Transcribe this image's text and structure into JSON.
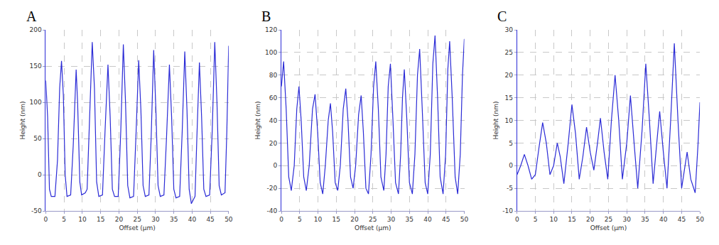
{
  "chart_data": [
    {
      "type": "line",
      "title": "A",
      "xlabel": "Offset (µm)",
      "ylabel": "Height (nm)",
      "color": "#2b2bd6",
      "grid": true,
      "xlim": [
        0,
        50
      ],
      "xticks": [
        0,
        5,
        10,
        15,
        20,
        25,
        30,
        35,
        40,
        45,
        50
      ],
      "ylim": [
        -50,
        200
      ],
      "yticks": [
        -50,
        0,
        50,
        100,
        150,
        200
      ],
      "x": [
        0,
        0.5,
        1,
        1.5,
        2.5,
        3.2,
        3.8,
        4.3,
        4.8,
        5.3,
        5.8,
        6.8,
        7.5,
        8.0,
        8.3,
        8.7,
        9.3,
        9.8,
        10.8,
        11.3,
        12,
        12.7,
        13.3,
        13.9,
        14.5,
        15.5,
        16.2,
        17,
        17.6,
        18.2,
        18.8,
        19.8,
        20.5,
        21.2,
        21.8,
        22.4,
        23,
        24,
        24.7,
        25.4,
        26,
        26.6,
        27.2,
        28.2,
        28.8,
        29.5,
        30.1,
        30.7,
        31.3,
        32.3,
        33,
        33.8,
        34.4,
        35,
        35.6,
        36.6,
        37.3,
        38,
        38.6,
        39.2,
        39.8,
        40.8,
        41.3,
        42,
        42.6,
        43.2,
        43.8,
        44.8,
        45.5,
        46.2,
        46.8,
        47.4,
        48,
        49,
        49.5,
        50
      ],
      "values": [
        130,
        80,
        -20,
        -30,
        -30,
        20,
        120,
        157,
        110,
        0,
        -30,
        -28,
        40,
        120,
        145,
        100,
        -10,
        -28,
        -25,
        -20,
        80,
        183,
        120,
        -10,
        -30,
        -28,
        60,
        152,
        80,
        -20,
        -30,
        -30,
        60,
        180,
        100,
        -15,
        -32,
        -30,
        60,
        158,
        90,
        -15,
        -30,
        -28,
        50,
        172,
        90,
        -15,
        -30,
        -28,
        50,
        152,
        80,
        -20,
        -32,
        -30,
        60,
        170,
        90,
        -20,
        -40,
        -30,
        50,
        155,
        80,
        -20,
        -30,
        -28,
        60,
        183,
        100,
        -15,
        -28,
        -25,
        60,
        178
      ]
    },
    {
      "type": "line",
      "title": "B",
      "xlabel": "Offset (µm)",
      "ylabel": "Height (nm)",
      "color": "#2b2bd6",
      "grid": true,
      "xlim": [
        0,
        50
      ],
      "xticks": [
        0,
        5,
        10,
        15,
        20,
        25,
        30,
        35,
        40,
        45,
        50
      ],
      "ylim": [
        -40,
        120
      ],
      "yticks": [
        -40,
        -20,
        0,
        20,
        40,
        60,
        80,
        100,
        120
      ],
      "x": [
        0,
        0.6,
        1.3,
        2,
        2.7,
        3.5,
        4.2,
        4.8,
        5.4,
        6.1,
        6.8,
        7.6,
        8.5,
        9.2,
        9.9,
        10.6,
        11.3,
        12,
        12.8,
        13.4,
        14,
        14.7,
        15.4,
        16.1,
        16.9,
        17.6,
        18.2,
        18.9,
        19.6,
        20.3,
        21.1,
        21.8,
        22.4,
        23.1,
        23.8,
        24.5,
        25.2,
        25.8,
        26.5,
        27.2,
        28,
        28.6,
        29.2,
        29.8,
        30.5,
        31.2,
        32,
        32.6,
        33.1,
        33.6,
        34.3,
        35,
        35.8,
        36.5,
        37.2,
        37.8,
        38.5,
        39.3,
        40,
        40.7,
        41.4,
        42,
        42.7,
        43.4,
        44.2,
        44.9,
        45.5,
        46,
        46.7,
        47.5,
        48.2,
        48.9,
        49.5,
        50
      ],
      "values": [
        70,
        92,
        50,
        -10,
        -22,
        0,
        50,
        70,
        40,
        -10,
        -22,
        0,
        50,
        63,
        30,
        -15,
        -25,
        0,
        40,
        55,
        30,
        -15,
        -22,
        0,
        50,
        68,
        40,
        -10,
        -20,
        0,
        45,
        62,
        30,
        -20,
        -25,
        10,
        70,
        92,
        50,
        -10,
        -22,
        10,
        70,
        90,
        40,
        -15,
        -25,
        10,
        60,
        85,
        40,
        -15,
        -25,
        10,
        80,
        103,
        50,
        -15,
        -25,
        10,
        90,
        115,
        60,
        -10,
        -25,
        10,
        85,
        110,
        60,
        -10,
        -25,
        10,
        80,
        112
      ]
    },
    {
      "type": "line",
      "title": "C",
      "xlabel": "Offset (µm)",
      "ylabel": "Height (nm)",
      "color": "#2b2bd6",
      "grid": true,
      "xlim": [
        0,
        50
      ],
      "xticks": [
        0,
        5,
        10,
        15,
        20,
        25,
        30,
        35,
        40,
        45,
        50
      ],
      "ylim": [
        -10,
        30
      ],
      "yticks": [
        -10,
        -5,
        0,
        5,
        10,
        15,
        20,
        25,
        30
      ],
      "x": [
        0,
        1,
        2,
        3,
        4,
        5,
        6,
        7,
        8,
        9,
        10,
        11,
        11.8,
        12.8,
        14,
        15,
        16,
        17,
        18,
        19,
        20,
        21,
        22,
        22.8,
        23.8,
        24.8,
        25.8,
        26.8,
        27.8,
        28.8,
        30,
        31,
        32,
        33,
        34.2,
        35.2,
        36.2,
        37.2,
        38.2,
        39,
        40,
        41,
        42,
        43,
        44,
        45,
        46.5,
        47.5,
        48.7,
        49.5,
        50
      ],
      "values": [
        -2,
        0,
        2.5,
        0,
        -3,
        -2,
        4,
        9.5,
        5,
        -2,
        0,
        5,
        2,
        -4,
        5,
        13.5,
        7,
        -3,
        2,
        8.5,
        3,
        -1,
        5,
        10.5,
        3,
        -3,
        10,
        20,
        10,
        -3,
        5,
        15.5,
        5,
        -5,
        8,
        22.5,
        10,
        -4,
        5,
        12,
        3,
        -5,
        10,
        27,
        10,
        -5,
        3,
        -3,
        -6,
        5,
        14
      ]
    }
  ]
}
